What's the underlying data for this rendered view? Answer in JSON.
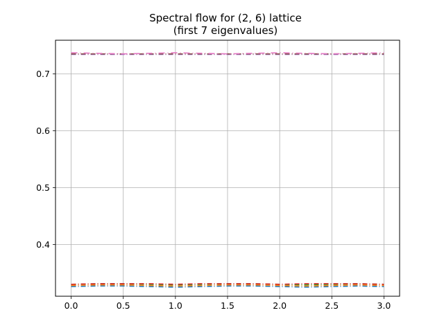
{
  "chart_data": {
    "type": "line",
    "title": "Spectral flow for (2, 6) lattice",
    "subtitle": "(first 7 eigenvalues)",
    "xlabel": "",
    "ylabel": "",
    "xlim": [
      -0.15,
      3.15
    ],
    "ylim": [
      0.309,
      0.759
    ],
    "xticks": [
      0.0,
      0.5,
      1.0,
      1.5,
      2.0,
      2.5,
      3.0
    ],
    "xtick_labels": [
      "0.0",
      "0.5",
      "1.0",
      "1.5",
      "2.0",
      "2.5",
      "3.0"
    ],
    "yticks": [
      0.4,
      0.5,
      0.6,
      0.7
    ],
    "ytick_labels": [
      "0.4",
      "0.5",
      "0.6",
      "0.7"
    ],
    "grid": true,
    "x": [
      0.0,
      0.25,
      0.5,
      0.75,
      1.0,
      1.25,
      1.5,
      1.75,
      2.0,
      2.25,
      2.5,
      2.75,
      3.0
    ],
    "series": [
      {
        "color": "#1f77b4",
        "dash": "7,3,1,3",
        "values": [
          0.326,
          0.327,
          0.327,
          0.326,
          0.325,
          0.326,
          0.327,
          0.327,
          0.326,
          0.325,
          0.326,
          0.327,
          0.326
        ]
      },
      {
        "color": "#ff7f0e",
        "dash": "7,3,1,3",
        "values": [
          0.328,
          0.329,
          0.329,
          0.328,
          0.327,
          0.328,
          0.329,
          0.329,
          0.328,
          0.327,
          0.328,
          0.329,
          0.328
        ]
      },
      {
        "color": "#2ca02c",
        "dash": "7,3,1,3",
        "values": [
          0.33,
          0.331,
          0.331,
          0.33,
          0.329,
          0.33,
          0.331,
          0.331,
          0.33,
          0.329,
          0.33,
          0.331,
          0.33
        ]
      },
      {
        "color": "#d62728",
        "dash": "7,3,1,3",
        "values": [
          0.33,
          0.331,
          0.331,
          0.331,
          0.33,
          0.331,
          0.331,
          0.331,
          0.33,
          0.331,
          0.331,
          0.331,
          0.33
        ]
      },
      {
        "color": "#9467bd",
        "dash": "7,3,1,3",
        "values": [
          0.734,
          0.734,
          0.734,
          0.734,
          0.734,
          0.734,
          0.734,
          0.734,
          0.734,
          0.734,
          0.734,
          0.734,
          0.734
        ]
      },
      {
        "color": "#8c564b",
        "dash": "7,3,1,3",
        "values": [
          0.735,
          0.735,
          0.735,
          0.735,
          0.735,
          0.735,
          0.735,
          0.735,
          0.735,
          0.735,
          0.735,
          0.735,
          0.735
        ]
      },
      {
        "color": "#e377c2",
        "dash": "9,4,1,4",
        "values": [
          0.737,
          0.736,
          0.735,
          0.736,
          0.737,
          0.736,
          0.735,
          0.736,
          0.737,
          0.736,
          0.735,
          0.736,
          0.737
        ]
      }
    ]
  }
}
